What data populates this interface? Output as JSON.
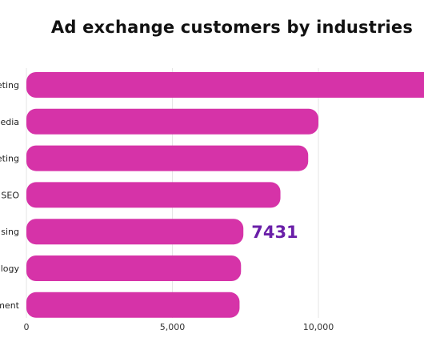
{
  "colors": {
    "bar": "#d633a8",
    "data_label": "#6a1fa8",
    "grid": "#e6e6e6"
  },
  "chart_data": {
    "type": "bar",
    "orientation": "horizontal",
    "title": "Ad exchange customers by industries",
    "categories": [
      "eting",
      "edia",
      "eting",
      "SEO",
      "sing",
      "logy",
      "ment"
    ],
    "values": [
      14000,
      10000,
      9650,
      8700,
      7431,
      7350,
      7300
    ],
    "xlim": [
      0,
      14000
    ],
    "xticks": [
      0,
      5000,
      10000
    ],
    "xtick_labels": [
      "0",
      "5,000",
      "10,000"
    ],
    "grid": true,
    "annotations": [
      {
        "category_index": 4,
        "text": "7431"
      }
    ]
  }
}
